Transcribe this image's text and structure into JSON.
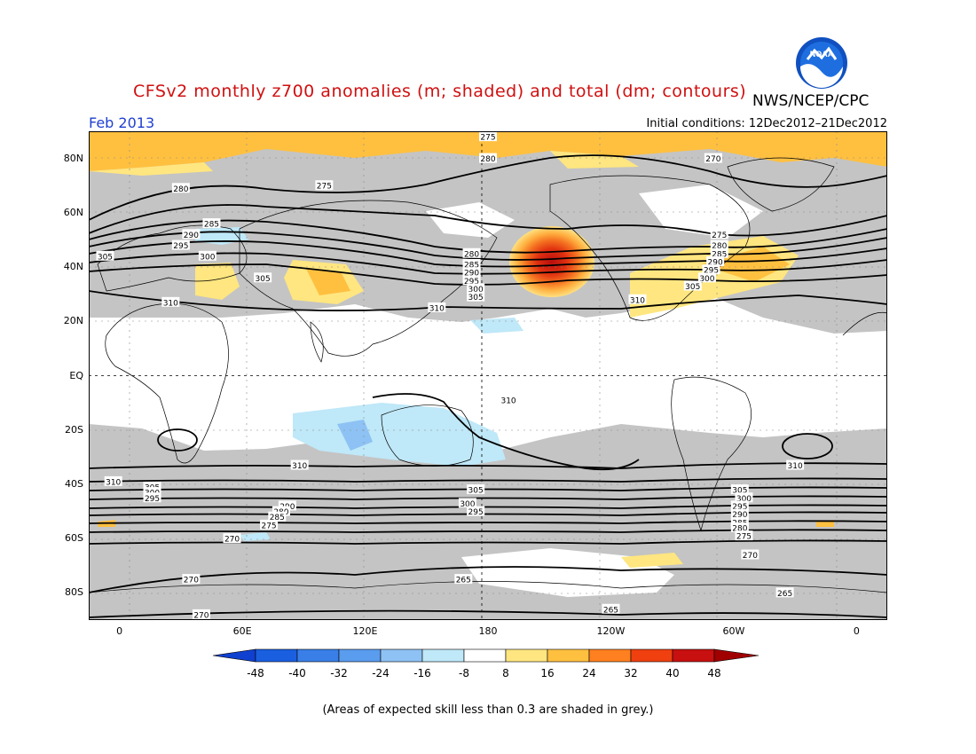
{
  "header": {
    "title": "CFSv2 monthly z700 anomalies (m; shaded) and total (dm; contours)",
    "org": "NWS/NCEP/CPC",
    "month": "Feb 2013",
    "initial_conditions": "Initial conditions: 12Dec2012–21Dec2012",
    "logo_label": "NOAA"
  },
  "map": {
    "lat_labels": [
      "80N",
      "60N",
      "40N",
      "20N",
      "EQ",
      "20S",
      "40S",
      "60S",
      "80S"
    ],
    "lat_values": [
      80,
      60,
      40,
      20,
      0,
      -20,
      -40,
      -60,
      -80
    ],
    "lon_labels": [
      "0",
      "60E",
      "120E",
      "180",
      "120W",
      "60W",
      "0"
    ],
    "lon_values": [
      0,
      60,
      120,
      180,
      240,
      300,
      360
    ],
    "lon_range": [
      -15,
      375
    ],
    "lat_range": [
      -90,
      90
    ],
    "contour_labels": [
      {
        "text": "275",
        "lon": 180,
        "lat": 88
      },
      {
        "text": "280",
        "lon": 180,
        "lat": 80
      },
      {
        "text": "270",
        "lon": 290,
        "lat": 80
      },
      {
        "text": "280",
        "lon": 30,
        "lat": 69
      },
      {
        "text": "275",
        "lon": 100,
        "lat": 70
      },
      {
        "text": "285",
        "lon": 45,
        "lat": 56
      },
      {
        "text": "290",
        "lon": 35,
        "lat": 52
      },
      {
        "text": "295",
        "lon": 30,
        "lat": 48
      },
      {
        "text": "300",
        "lon": 43,
        "lat": 44
      },
      {
        "text": "305",
        "lon": -7,
        "lat": 44
      },
      {
        "text": "305",
        "lon": 70,
        "lat": 36
      },
      {
        "text": "310",
        "lon": 25,
        "lat": 27
      },
      {
        "text": "280",
        "lon": 172,
        "lat": 45
      },
      {
        "text": "285",
        "lon": 172,
        "lat": 41
      },
      {
        "text": "290",
        "lon": 172,
        "lat": 38
      },
      {
        "text": "295",
        "lon": 172,
        "lat": 35
      },
      {
        "text": "300",
        "lon": 174,
        "lat": 32
      },
      {
        "text": "305",
        "lon": 174,
        "lat": 29
      },
      {
        "text": "310",
        "lon": 155,
        "lat": 25
      },
      {
        "text": "275",
        "lon": 293,
        "lat": 52
      },
      {
        "text": "280",
        "lon": 293,
        "lat": 48
      },
      {
        "text": "285",
        "lon": 293,
        "lat": 45
      },
      {
        "text": "290",
        "lon": 291,
        "lat": 42
      },
      {
        "text": "295",
        "lon": 289,
        "lat": 39
      },
      {
        "text": "300",
        "lon": 287,
        "lat": 36
      },
      {
        "text": "305",
        "lon": 280,
        "lat": 33
      },
      {
        "text": "310",
        "lon": 253,
        "lat": 28
      },
      {
        "text": "310",
        "lon": 190,
        "lat": -9
      },
      {
        "text": "310",
        "lon": 88,
        "lat": -33
      },
      {
        "text": "310",
        "lon": 330,
        "lat": -33
      },
      {
        "text": "310",
        "lon": -3,
        "lat": -39
      },
      {
        "text": "305",
        "lon": 16,
        "lat": -41
      },
      {
        "text": "300",
        "lon": 16,
        "lat": -43
      },
      {
        "text": "295",
        "lon": 16,
        "lat": -45
      },
      {
        "text": "290",
        "lon": 82,
        "lat": -48
      },
      {
        "text": "280",
        "lon": 79,
        "lat": -50
      },
      {
        "text": "285",
        "lon": 77,
        "lat": -52
      },
      {
        "text": "275",
        "lon": 73,
        "lat": -55
      },
      {
        "text": "270",
        "lon": 55,
        "lat": -60
      },
      {
        "text": "305",
        "lon": 174,
        "lat": -42
      },
      {
        "text": "300",
        "lon": 170,
        "lat": -47
      },
      {
        "text": "295",
        "lon": 174,
        "lat": -50
      },
      {
        "text": "305",
        "lon": 303,
        "lat": -42
      },
      {
        "text": "300",
        "lon": 305,
        "lat": -45
      },
      {
        "text": "295",
        "lon": 303,
        "lat": -48
      },
      {
        "text": "290",
        "lon": 303,
        "lat": -51
      },
      {
        "text": "285",
        "lon": 303,
        "lat": -54
      },
      {
        "text": "280",
        "lon": 303,
        "lat": -56
      },
      {
        "text": "275",
        "lon": 305,
        "lat": -59
      },
      {
        "text": "270",
        "lon": 308,
        "lat": -66
      },
      {
        "text": "270",
        "lon": 35,
        "lat": -75
      },
      {
        "text": "270",
        "lon": 40,
        "lat": -88
      },
      {
        "text": "265",
        "lon": 168,
        "lat": -75
      },
      {
        "text": "265",
        "lon": 325,
        "lat": -80
      },
      {
        "text": "265",
        "lon": 240,
        "lat": -86
      }
    ]
  },
  "colorbar": {
    "labels": [
      "-48",
      "-40",
      "-32",
      "-24",
      "-16",
      "-8",
      "8",
      "16",
      "24",
      "32",
      "40",
      "48"
    ],
    "colors": [
      "#1a5fe0",
      "#3a7fe8",
      "#5a9cee",
      "#8ec2f4",
      "#bfe8f8",
      "#ffffff",
      "#ffe680",
      "#ffc040",
      "#ff8020",
      "#f04010",
      "#c81010"
    ],
    "left_arrow_color": "#1040d0",
    "right_arrow_color": "#a00000"
  },
  "footer": {
    "skill_note": "(Areas of expected skill less than 0.3 are shaded in grey.)"
  }
}
